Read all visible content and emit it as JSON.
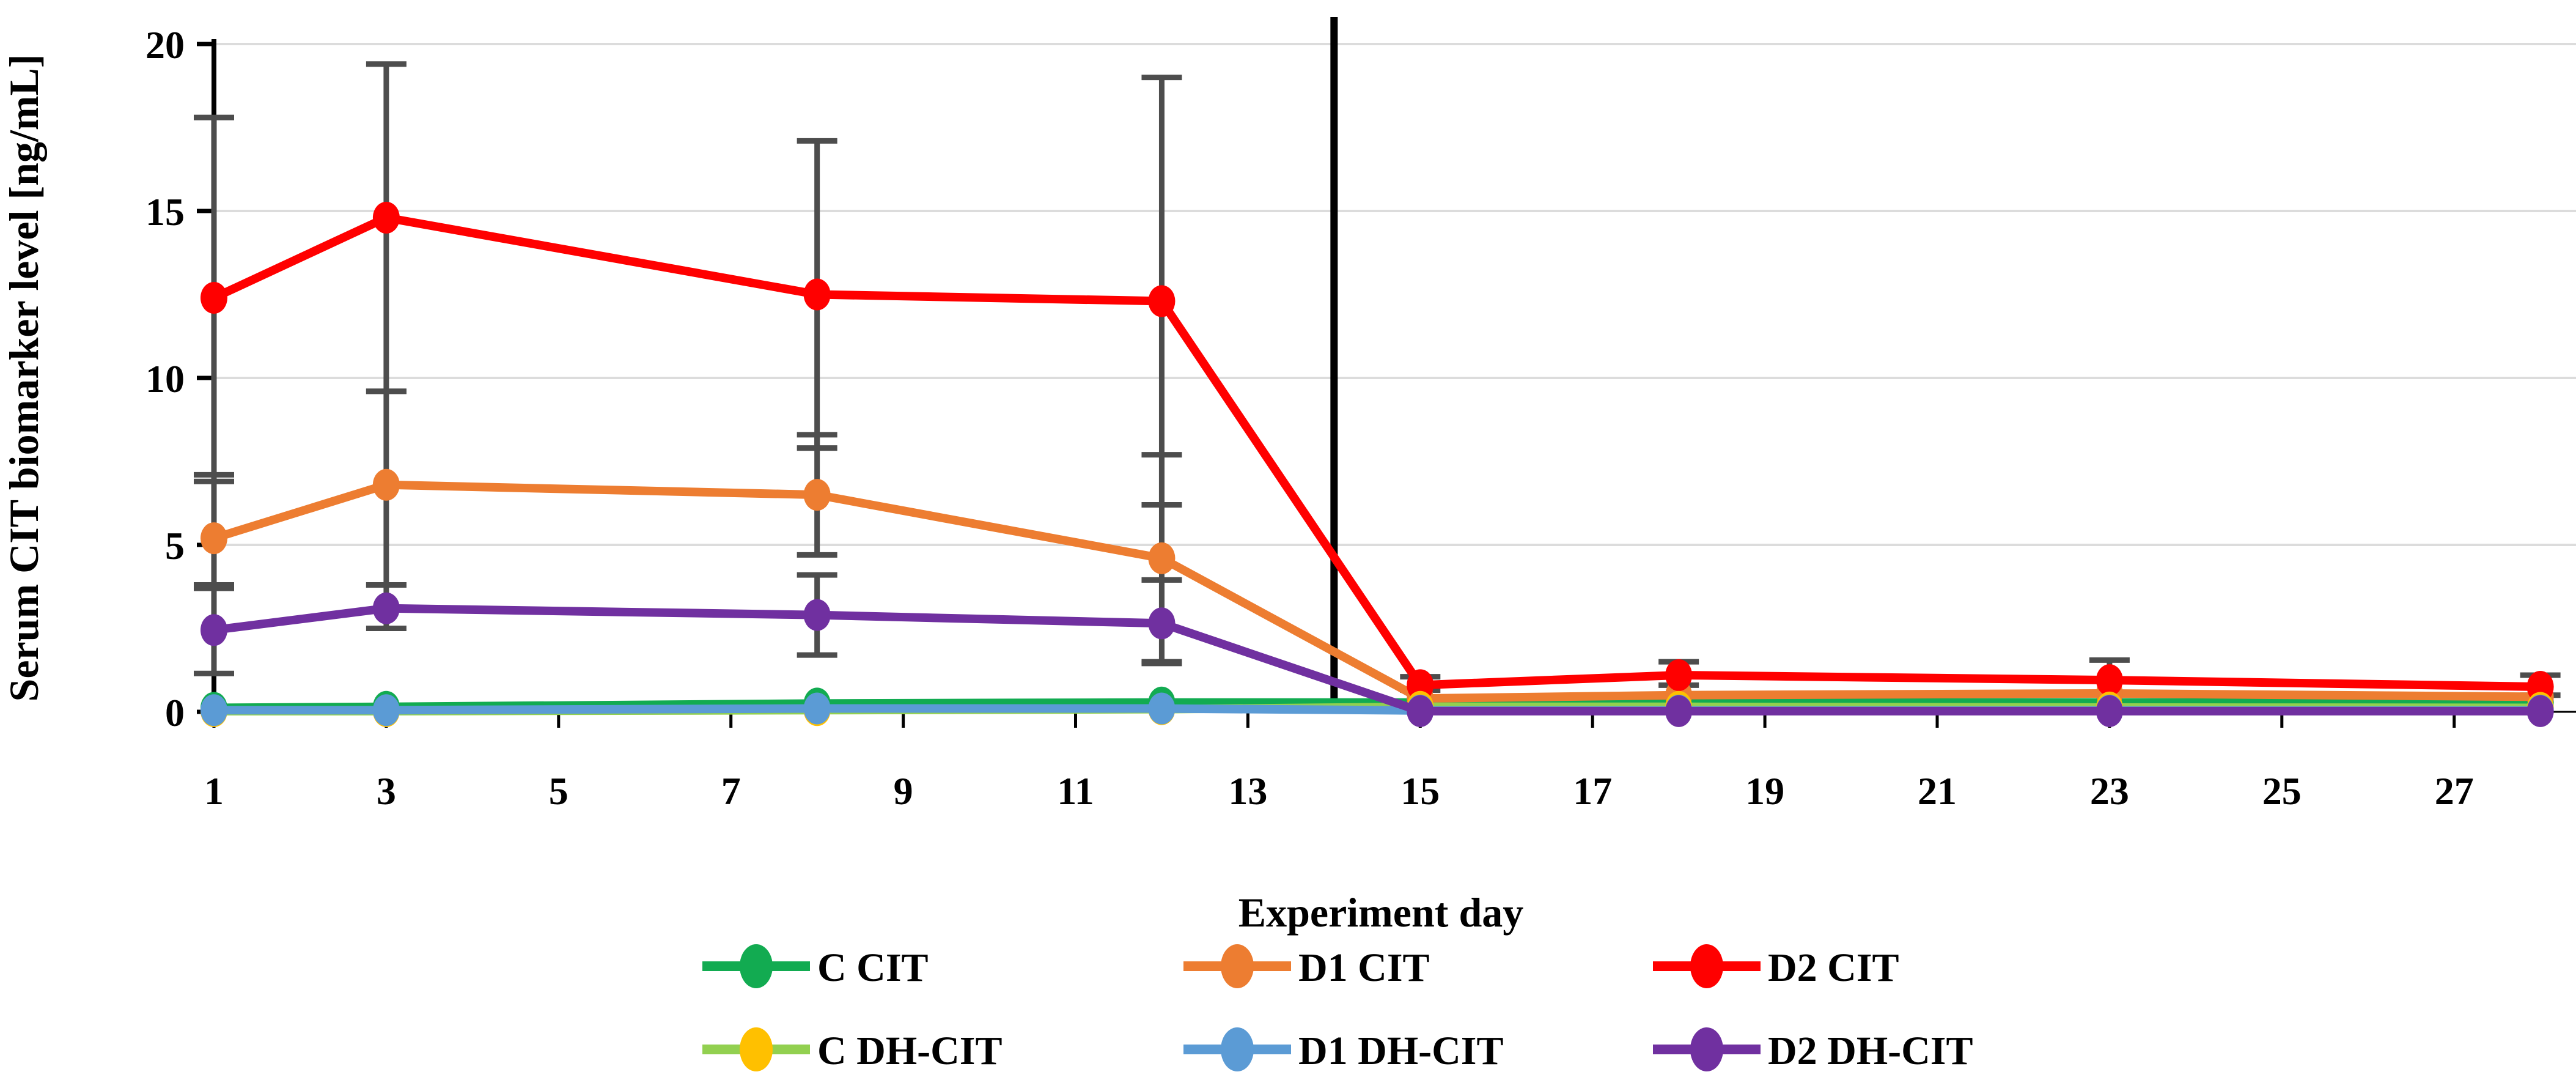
{
  "figure": {
    "background": "#ffffff",
    "gridline_color": "#dcdcdc",
    "axis_color": "#000000",
    "error_bar_color": "#4d4d4d",
    "divider_color": "#000000"
  },
  "chart_data": {
    "type": "line",
    "title": "",
    "xlabel": "Experiment day",
    "ylabel": "Serum CIT biomarker level [ng/mL]",
    "x": [
      1,
      3,
      8,
      12,
      15,
      18,
      23,
      28
    ],
    "x_tick_labels": [
      "1",
      "3",
      "5",
      "7",
      "9",
      "11",
      "13",
      "15",
      "17",
      "19",
      "21",
      "23",
      "25",
      "27"
    ],
    "x_tick_values": [
      1,
      3,
      5,
      7,
      9,
      11,
      13,
      15,
      17,
      19,
      21,
      23,
      25,
      27
    ],
    "y_tick_labels": [
      "0",
      "5",
      "10",
      "15",
      "20"
    ],
    "y_tick_values": [
      0,
      5,
      10,
      15,
      20
    ],
    "xlim": [
      1,
      28.4
    ],
    "ylim": [
      0,
      20
    ],
    "grid": "horizontal",
    "legend_position": "bottom",
    "divider_line_x": 14,
    "series": [
      {
        "name": "C CIT",
        "line_color": "#12ab51",
        "marker_color": "#12ab51",
        "values": [
          0.12,
          0.15,
          0.25,
          0.28,
          0.28,
          0.28,
          0.28,
          0.28
        ],
        "err_up": [
          0,
          0,
          0,
          0,
          0,
          0,
          0,
          0
        ],
        "err_down": [
          0,
          0,
          0,
          0,
          0,
          0,
          0,
          0
        ]
      },
      {
        "name": "D1 CIT",
        "line_color": "#ed7d31",
        "marker_color": "#ed7d31",
        "values": [
          5.2,
          6.8,
          6.5,
          4.6,
          0.4,
          0.5,
          0.55,
          0.45
        ],
        "err_up": [
          1.9,
          2.8,
          1.8,
          3.1,
          0,
          0,
          0,
          0
        ],
        "err_down": [
          1.5,
          3.0,
          1.8,
          3.1,
          0,
          0,
          0,
          0
        ]
      },
      {
        "name": "D2 CIT",
        "line_color": "#ff0000",
        "marker_color": "#ff0000",
        "values": [
          12.4,
          14.8,
          12.5,
          12.3,
          0.8,
          1.1,
          0.95,
          0.75
        ],
        "err_up": [
          5.4,
          4.6,
          4.6,
          6.7,
          0.25,
          0.4,
          0.6,
          0.35
        ],
        "err_down": [
          5.5,
          5.2,
          4.6,
          6.1,
          0.15,
          0.3,
          0.4,
          0.25
        ]
      },
      {
        "name": "C DH-CIT",
        "line_color": "#92d050",
        "marker_color": "#ffc000",
        "values": [
          0.02,
          0.02,
          0.05,
          0.08,
          0.15,
          0.15,
          0.13,
          0.12
        ],
        "err_up": [
          0,
          0,
          0,
          0,
          0,
          0,
          0,
          0
        ],
        "err_down": [
          0,
          0,
          0,
          0,
          0,
          0,
          0,
          0
        ]
      },
      {
        "name": "D1 DH-CIT",
        "line_color": "#5b9bd5",
        "marker_color": "#5b9bd5",
        "values": [
          0.05,
          0.05,
          0.1,
          0.1,
          0.04,
          0.04,
          0.04,
          0.04
        ],
        "err_up": [
          0,
          0,
          0,
          0,
          0,
          0,
          0,
          0
        ],
        "err_down": [
          0,
          0,
          0,
          0,
          0,
          0,
          0,
          0
        ]
      },
      {
        "name": "D2 DH-CIT",
        "line_color": "#7030a0",
        "marker_color": "#7030a0",
        "values": [
          2.45,
          3.1,
          2.9,
          2.65,
          0.02,
          0.02,
          0.02,
          0.02
        ],
        "err_up": [
          1.35,
          0.7,
          1.2,
          1.3,
          0,
          0,
          0,
          0
        ],
        "err_down": [
          1.3,
          0.6,
          1.2,
          1.2,
          0,
          0,
          0,
          0
        ]
      }
    ],
    "legend_rows": [
      [
        "C CIT",
        "D1 CIT",
        "D2 CIT"
      ],
      [
        "C DH-CIT",
        "D1 DH-CIT",
        "D2 DH-CIT"
      ]
    ]
  }
}
